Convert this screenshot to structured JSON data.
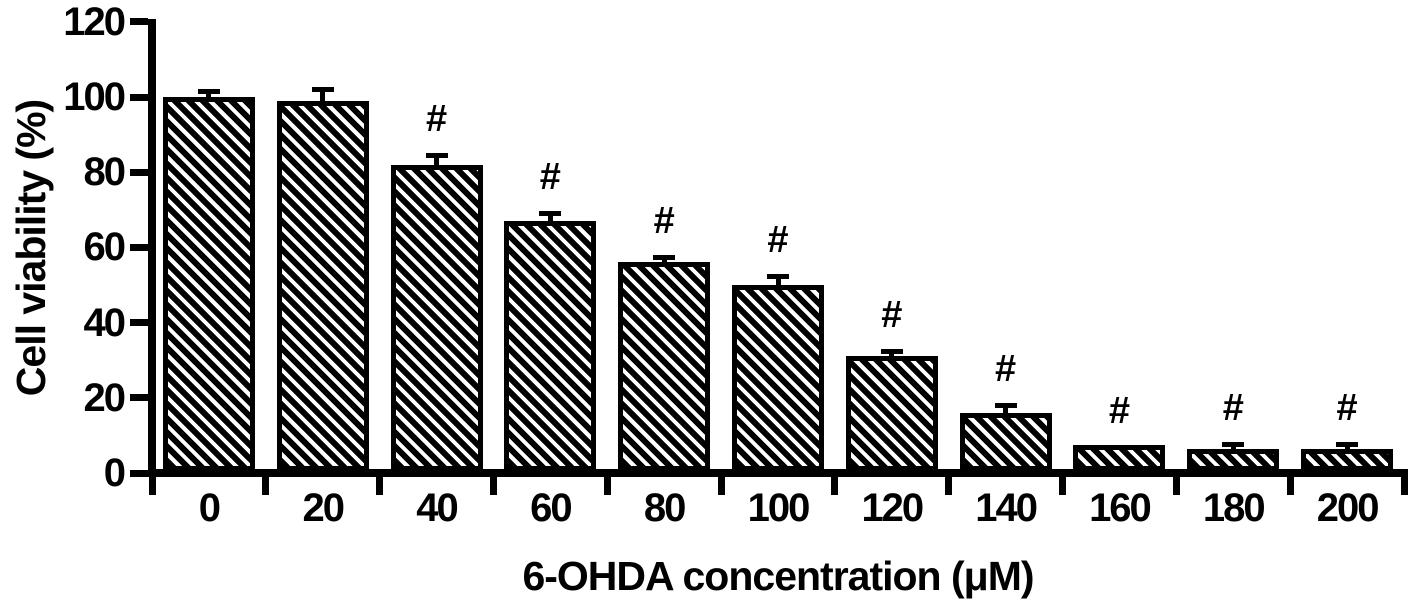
{
  "figure": {
    "background": "#ffffff",
    "ink": "#000000"
  },
  "chart_data": {
    "type": "bar",
    "xlabel": "6-OHDA concentration (μM)",
    "ylabel": "Cell viability (%)",
    "categories": [
      "0",
      "20",
      "40",
      "60",
      "80",
      "100",
      "120",
      "140",
      "160",
      "180",
      "200"
    ],
    "values": [
      100,
      99,
      82,
      67,
      56,
      50,
      31,
      16,
      7.5,
      6.5,
      6.5
    ],
    "errors_plus": [
      1,
      2.5,
      2,
      1.5,
      0.8,
      1.8,
      0.8,
      1.5,
      0,
      0.8,
      0.8
    ],
    "annotations": [
      "",
      "",
      "#",
      "#",
      "#",
      "#",
      "#",
      "#",
      "#",
      "#",
      "#"
    ],
    "ylim": [
      0,
      120
    ],
    "yticks": [
      0,
      20,
      40,
      60,
      80,
      100,
      120
    ],
    "grid": false,
    "legend": false,
    "bar_style": {
      "fill": "diagonal-hatch",
      "hatch_direction": "backslash",
      "color": "#000000"
    }
  }
}
